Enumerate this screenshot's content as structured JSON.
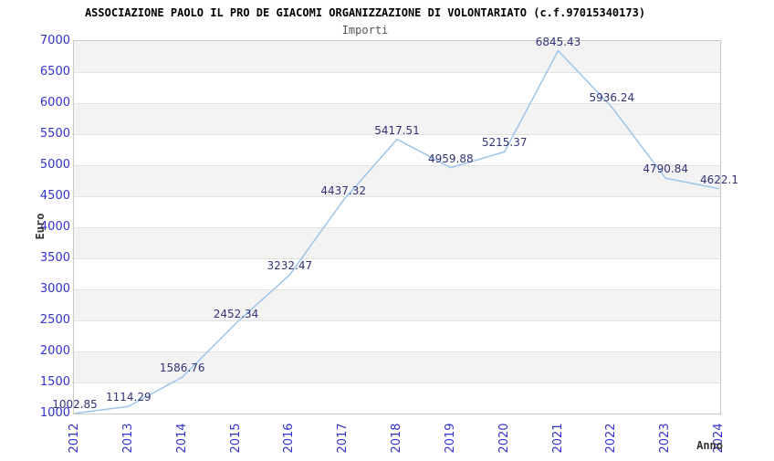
{
  "chart_data": {
    "type": "line",
    "title": "ASSOCIAZIONE PAOLO IL PRO DE GIACOMI ORGANIZZAZIONE DI VOLONTARIATO (c.f.97015340173)",
    "subtitle": "Importi",
    "xlabel": "Anno",
    "ylabel": "Euro",
    "categories": [
      "2012",
      "2013",
      "2014",
      "2015",
      "2016",
      "2017",
      "2018",
      "2019",
      "2020",
      "2021",
      "2022",
      "2023",
      "2024"
    ],
    "values": [
      1002.85,
      1114.29,
      1586.76,
      2452.34,
      3232.47,
      4437.32,
      5417.51,
      4959.88,
      5215.37,
      6845.43,
      5936.24,
      4790.84,
      4622.1
    ],
    "point_labels": [
      "1002.85",
      "1114.29",
      "1586.76",
      "2452.34",
      "3232.47",
      "4437.32",
      "5417.51",
      "4959.88",
      "5215.37",
      "6845.43",
      "5936.24",
      "4790.84",
      "4622.1"
    ],
    "ylim": [
      1000,
      7000
    ],
    "ytick_step": 500,
    "grid": "horizontal-bands",
    "legend": "none",
    "colors": {
      "line": "#9ec5ea",
      "axis_tick_text": "#3232cd",
      "point_label_text": "#333377",
      "band_gray": "#f3f3f3",
      "band_white": "#ffffff",
      "gridline": "#e2e2e2",
      "frame": "#c9c9c9",
      "title_text": "#000000",
      "subtitle_text": "#555555",
      "axis_title_text": "#333333"
    }
  }
}
